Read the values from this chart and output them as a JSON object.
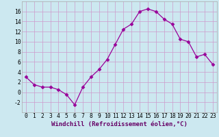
{
  "x": [
    0,
    1,
    2,
    3,
    4,
    5,
    6,
    7,
    8,
    9,
    10,
    11,
    12,
    13,
    14,
    15,
    16,
    17,
    18,
    19,
    20,
    21,
    22,
    23
  ],
  "y": [
    3,
    1.5,
    1,
    1,
    0.5,
    -0.5,
    -2.5,
    1,
    3,
    4.5,
    6.5,
    9.5,
    12.5,
    13.5,
    16,
    16.5,
    16,
    14.5,
    13.5,
    10.5,
    10,
    7,
    7.5,
    5.5
  ],
  "line_color": "#990099",
  "marker": "D",
  "marker_size": 2.5,
  "bg_color": "#cce8f0",
  "grid_color": "#cc99cc",
  "xlabel": "Windchill (Refroidissement éolien,°C)",
  "xlabel_fontsize": 6.5,
  "ylim": [
    -4,
    18
  ],
  "yticks": [
    -2,
    0,
    2,
    4,
    6,
    8,
    10,
    12,
    14,
    16
  ],
  "xticks": [
    0,
    1,
    2,
    3,
    4,
    5,
    6,
    7,
    8,
    9,
    10,
    11,
    12,
    13,
    14,
    15,
    16,
    17,
    18,
    19,
    20,
    21,
    22,
    23
  ],
  "tick_fontsize": 5.8,
  "spine_color": "#aaaaaa"
}
